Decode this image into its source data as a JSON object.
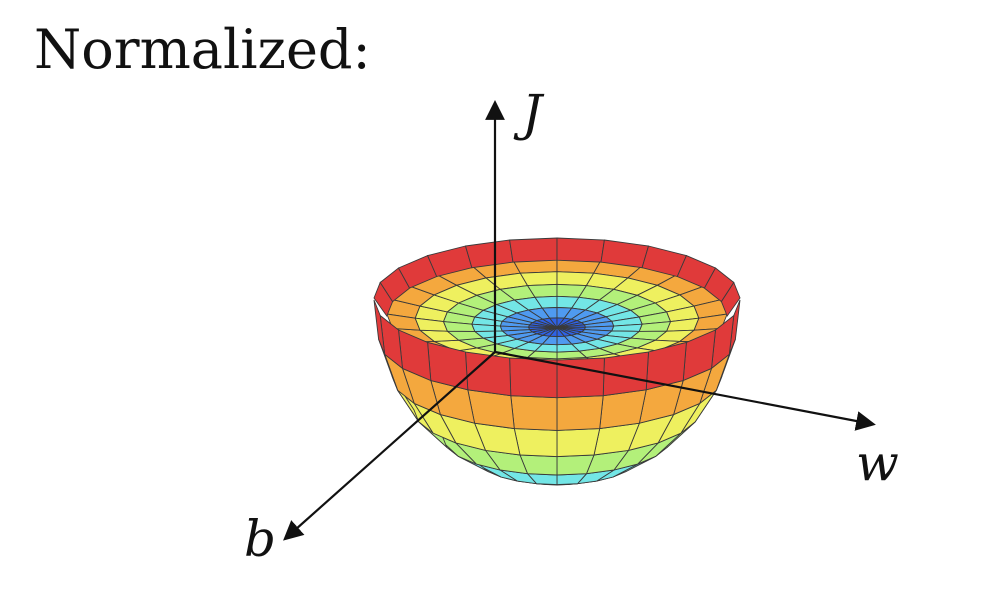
{
  "heading": "Normalized:",
  "axes": {
    "vertical_label": "J",
    "right_label": "w",
    "front_label": "b"
  },
  "surface": {
    "shape": "paraboloid-bowl",
    "colors": [
      "#2f62e6",
      "#4f9af0",
      "#73e6e6",
      "#b3f07a",
      "#eef05f",
      "#f4a83e",
      "#e03a3a"
    ],
    "rim_color": "#e03a3a",
    "inner_colors": [
      "#2f62e6",
      "#4f9af0",
      "#73e6e6",
      "#b3f07a",
      "#eef05f",
      "#f4a83e"
    ]
  }
}
